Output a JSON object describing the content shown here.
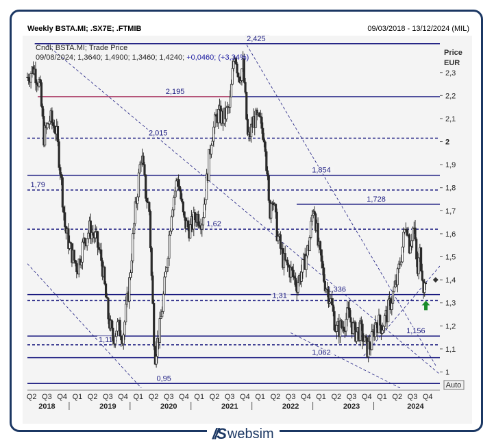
{
  "header": {
    "title": "Weekly BSTA.MI; .SX7E; .FTMIB",
    "range": "09/03/2018 - 13/12/2024 (MIL)"
  },
  "brand": {
    "name": "websim"
  },
  "chart_data": {
    "type": "candlestick",
    "info_line1": "Cndl; BSTA.MI; Trade Price",
    "info_line2_prefix": "09/08/2024; 1,3640; 1,4900; 1,3460; 1,4240; ",
    "info_line2_change": "+0,0460; (+3,34%)",
    "ylabel": "Price",
    "yunit": "EUR",
    "auto_label": "Auto",
    "ylim": [
      0.93,
      2.46
    ],
    "xlim": [
      2018.18,
      2024.95
    ],
    "y_ticks": [
      {
        "v": 2.3,
        "label": "2,3"
      },
      {
        "v": 2.2,
        "label": "2,2"
      },
      {
        "v": 2.1,
        "label": "2,1"
      },
      {
        "v": 2.0,
        "label": "2"
      },
      {
        "v": 1.9,
        "label": "1,9"
      },
      {
        "v": 1.8,
        "label": "1,8"
      },
      {
        "v": 1.7,
        "label": "1,7"
      },
      {
        "v": 1.6,
        "label": "1,6"
      },
      {
        "v": 1.5,
        "label": "1,5"
      },
      {
        "v": 1.4,
        "label": "1,4"
      },
      {
        "v": 1.3,
        "label": "1,3"
      },
      {
        "v": 1.2,
        "label": "1,2"
      },
      {
        "v": 1.1,
        "label": "1,1"
      },
      {
        "v": 1.0,
        "label": "1"
      }
    ],
    "quarter_labels": [
      {
        "t": 2018.25,
        "label": "Q2"
      },
      {
        "t": 2018.5,
        "label": "Q3"
      },
      {
        "t": 2018.75,
        "label": "Q4"
      },
      {
        "t": 2019.0,
        "label": "Q1"
      },
      {
        "t": 2019.25,
        "label": "Q2"
      },
      {
        "t": 2019.5,
        "label": "Q3"
      },
      {
        "t": 2019.75,
        "label": "Q4"
      },
      {
        "t": 2020.0,
        "label": "Q1"
      },
      {
        "t": 2020.25,
        "label": "Q2"
      },
      {
        "t": 2020.5,
        "label": "Q3"
      },
      {
        "t": 2020.75,
        "label": "Q4"
      },
      {
        "t": 2021.0,
        "label": "Q1"
      },
      {
        "t": 2021.25,
        "label": "Q2"
      },
      {
        "t": 2021.5,
        "label": "Q3"
      },
      {
        "t": 2021.75,
        "label": "Q4"
      },
      {
        "t": 2022.0,
        "label": "Q1"
      },
      {
        "t": 2022.25,
        "label": "Q2"
      },
      {
        "t": 2022.5,
        "label": "Q3"
      },
      {
        "t": 2022.75,
        "label": "Q4"
      },
      {
        "t": 2023.0,
        "label": "Q1"
      },
      {
        "t": 2023.25,
        "label": "Q2"
      },
      {
        "t": 2023.5,
        "label": "Q3"
      },
      {
        "t": 2023.75,
        "label": "Q4"
      },
      {
        "t": 2024.0,
        "label": "Q1"
      },
      {
        "t": 2024.25,
        "label": "Q2"
      },
      {
        "t": 2024.5,
        "label": "Q3"
      },
      {
        "t": 2024.75,
        "label": "Q4"
      }
    ],
    "year_labels": [
      {
        "t": 2018.5,
        "label": "2018"
      },
      {
        "t": 2019.5,
        "label": "2019"
      },
      {
        "t": 2020.5,
        "label": "2020"
      },
      {
        "t": 2021.5,
        "label": "2021"
      },
      {
        "t": 2022.5,
        "label": "2022"
      },
      {
        "t": 2023.5,
        "label": "2023"
      },
      {
        "t": 2024.55,
        "label": "2024"
      }
    ],
    "levels": [
      {
        "v": 2.425,
        "label": "2,425",
        "style": "solid",
        "color": "#1a1a80",
        "t0": 2018.3,
        "t1": 2024.95,
        "lt": 2021.78
      },
      {
        "v": 2.195,
        "label": "2,195",
        "style": "solid",
        "color": "#a02050",
        "t0": 2018.35,
        "t1": 2021.5,
        "lt": 2020.45
      },
      {
        "v": 2.195,
        "label": "",
        "style": "solid",
        "color": "#1a1a80",
        "t0": 2021.5,
        "t1": 2024.95,
        "lt": 2021.5
      },
      {
        "v": 2.015,
        "label": "2,015",
        "style": "dashed",
        "color": "#1a1a80",
        "t0": 2018.18,
        "t1": 2024.95,
        "lt": 2020.17
      },
      {
        "v": 1.854,
        "label": "1,854",
        "style": "solid",
        "color": "#1a1a80",
        "t0": 2018.18,
        "t1": 2024.95,
        "lt": 2022.85
      },
      {
        "v": 1.79,
        "label": "1,79",
        "style": "dashed",
        "color": "#1a1a80",
        "t0": 2018.18,
        "t1": 2024.95,
        "lt": 2018.23
      },
      {
        "v": 1.728,
        "label": "1,728",
        "style": "solid",
        "color": "#1a1a80",
        "t0": 2022.6,
        "t1": 2024.95,
        "lt": 2023.75
      },
      {
        "v": 1.62,
        "label": "1,62",
        "style": "dashed",
        "color": "#1a1a80",
        "t0": 2018.18,
        "t1": 2024.95,
        "lt": 2021.12
      },
      {
        "v": 1.336,
        "label": "1,336",
        "style": "solid",
        "color": "#1a1a80",
        "t0": 2018.18,
        "t1": 2024.95,
        "lt": 2023.1
      },
      {
        "v": 1.31,
        "label": "1,31",
        "style": "dashed",
        "color": "#1a1a80",
        "t0": 2018.18,
        "t1": 2024.95,
        "lt": 2022.2
      },
      {
        "v": 1.156,
        "label": "1,156",
        "style": "solid",
        "color": "#1a1a80",
        "t0": 2018.18,
        "t1": 2024.95,
        "lt": 2024.4
      },
      {
        "v": 1.118,
        "label": "1,118",
        "style": "dashed",
        "color": "#1a1a80",
        "t0": 2018.18,
        "t1": 2024.95,
        "lt": 2019.35
      },
      {
        "v": 1.062,
        "label": "1,062",
        "style": "solid",
        "color": "#1a1a80",
        "t0": 2018.18,
        "t1": 2024.95,
        "lt": 2022.85
      },
      {
        "v": 0.95,
        "label": "0,95",
        "style": "solid",
        "color": "#1a1a80",
        "t0": 2018.18,
        "t1": 2024.95,
        "lt": 2020.3
      }
    ],
    "trendlines": [
      {
        "t0": 2018.5,
        "v0": 2.42,
        "t1": 2024.95,
        "v1": 0.99
      },
      {
        "t0": 2018.18,
        "v0": 1.47,
        "t1": 2020.05,
        "v1": 0.93
      },
      {
        "t0": 2021.78,
        "v0": 2.42,
        "t1": 2024.9,
        "v1": 1.02
      },
      {
        "t0": 2022.5,
        "v0": 1.17,
        "t1": 2024.3,
        "v1": 0.93
      },
      {
        "t0": 2023.7,
        "v0": 1.07,
        "t1": 2024.95,
        "v1": 1.46
      }
    ],
    "price_path": [
      [
        2018.18,
        2.28
      ],
      [
        2018.28,
        2.32
      ],
      [
        2018.38,
        2.25
      ],
      [
        2018.45,
        2.02
      ],
      [
        2018.55,
        2.1
      ],
      [
        2018.65,
        2.05
      ],
      [
        2018.72,
        1.88
      ],
      [
        2018.8,
        1.62
      ],
      [
        2018.9,
        1.52
      ],
      [
        2019.0,
        1.45
      ],
      [
        2019.1,
        1.56
      ],
      [
        2019.2,
        1.62
      ],
      [
        2019.3,
        1.58
      ],
      [
        2019.4,
        1.48
      ],
      [
        2019.5,
        1.25
      ],
      [
        2019.58,
        1.14
      ],
      [
        2019.65,
        1.2
      ],
      [
        2019.75,
        1.16
      ],
      [
        2019.85,
        1.38
      ],
      [
        2019.95,
        1.7
      ],
      [
        2020.05,
        1.95
      ],
      [
        2020.12,
        1.78
      ],
      [
        2020.18,
        1.7
      ],
      [
        2020.22,
        1.4
      ],
      [
        2020.27,
        1.07
      ],
      [
        2020.35,
        1.18
      ],
      [
        2020.45,
        1.42
      ],
      [
        2020.55,
        1.72
      ],
      [
        2020.65,
        1.85
      ],
      [
        2020.75,
        1.65
      ],
      [
        2020.85,
        1.62
      ],
      [
        2020.95,
        1.68
      ],
      [
        2021.05,
        1.66
      ],
      [
        2021.12,
        1.82
      ],
      [
        2021.2,
        2.02
      ],
      [
        2021.3,
        2.12
      ],
      [
        2021.4,
        2.1
      ],
      [
        2021.5,
        2.15
      ],
      [
        2021.58,
        2.4
      ],
      [
        2021.65,
        2.28
      ],
      [
        2021.72,
        2.33
      ],
      [
        2021.8,
        2.0
      ],
      [
        2021.9,
        2.1
      ],
      [
        2022.0,
        2.08
      ],
      [
        2022.08,
        2.02
      ],
      [
        2022.15,
        1.68
      ],
      [
        2022.2,
        1.78
      ],
      [
        2022.28,
        1.6
      ],
      [
        2022.38,
        1.48
      ],
      [
        2022.5,
        1.44
      ],
      [
        2022.6,
        1.38
      ],
      [
        2022.7,
        1.45
      ],
      [
        2022.8,
        1.55
      ],
      [
        2022.88,
        1.74
      ],
      [
        2022.95,
        1.55
      ],
      [
        2023.05,
        1.4
      ],
      [
        2023.15,
        1.32
      ],
      [
        2023.25,
        1.18
      ],
      [
        2023.35,
        1.2
      ],
      [
        2023.45,
        1.25
      ],
      [
        2023.55,
        1.17
      ],
      [
        2023.65,
        1.18
      ],
      [
        2023.75,
        1.1
      ],
      [
        2023.82,
        1.12
      ],
      [
        2023.9,
        1.22
      ],
      [
        2024.0,
        1.2
      ],
      [
        2024.08,
        1.25
      ],
      [
        2024.15,
        1.31
      ],
      [
        2024.25,
        1.4
      ],
      [
        2024.32,
        1.52
      ],
      [
        2024.4,
        1.66
      ],
      [
        2024.45,
        1.55
      ],
      [
        2024.52,
        1.64
      ],
      [
        2024.58,
        1.42
      ],
      [
        2024.62,
        1.52
      ],
      [
        2024.66,
        1.44
      ],
      [
        2024.69,
        1.35
      ],
      [
        2024.72,
        1.42
      ]
    ],
    "last_marker": {
      "t": 2024.88,
      "v": 1.4
    },
    "arrow": {
      "t": 2024.72,
      "v": 1.31
    }
  }
}
